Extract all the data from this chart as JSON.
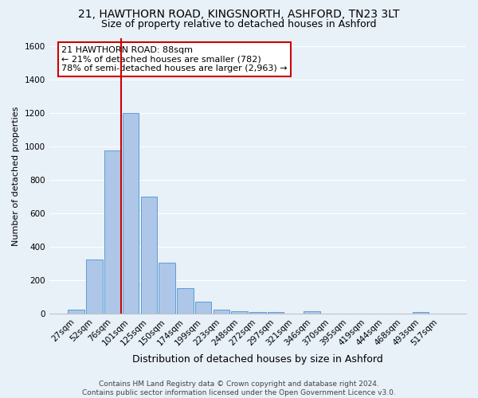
{
  "title1": "21, HAWTHORN ROAD, KINGSNORTH, ASHFORD, TN23 3LT",
  "title2": "Size of property relative to detached houses in Ashford",
  "xlabel": "Distribution of detached houses by size in Ashford",
  "ylabel": "Number of detached properties",
  "footer1": "Contains HM Land Registry data © Crown copyright and database right 2024.",
  "footer2": "Contains public sector information licensed under the Open Government Licence v3.0.",
  "bar_labels": [
    "27sqm",
    "52sqm",
    "76sqm",
    "101sqm",
    "125sqm",
    "150sqm",
    "174sqm",
    "199sqm",
    "223sqm",
    "248sqm",
    "272sqm",
    "297sqm",
    "321sqm",
    "346sqm",
    "370sqm",
    "395sqm",
    "419sqm",
    "444sqm",
    "468sqm",
    "493sqm",
    "517sqm"
  ],
  "bar_values": [
    25,
    325,
    975,
    1200,
    700,
    305,
    155,
    75,
    25,
    15,
    10,
    10,
    0,
    15,
    0,
    0,
    0,
    0,
    0,
    10,
    0
  ],
  "bar_color": "#aec6e8",
  "bar_edge_color": "#5a9fd4",
  "ylim": [
    0,
    1650
  ],
  "yticks": [
    0,
    200,
    400,
    600,
    800,
    1000,
    1200,
    1400,
    1600
  ],
  "annotation_text1": "21 HAWTHORN ROAD: 88sqm",
  "annotation_text2": "← 21% of detached houses are smaller (782)",
  "annotation_text3": "78% of semi-detached houses are larger (2,963) →",
  "annotation_box_color": "#ffffff",
  "annotation_border_color": "#cc0000",
  "redline_color": "#cc0000",
  "bg_color": "#e8f0f8",
  "grid_color": "#ffffff",
  "title1_fontsize": 10,
  "title2_fontsize": 9,
  "xlabel_fontsize": 9,
  "ylabel_fontsize": 8,
  "tick_fontsize": 7.5,
  "annotation_fontsize": 8,
  "footer_fontsize": 6.5
}
